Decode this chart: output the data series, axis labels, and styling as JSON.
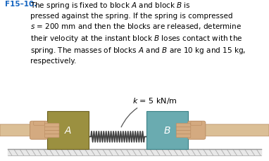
{
  "title_label": "F15–10.",
  "title_color": "#1565C0",
  "body_text": "The spring is fixed to block $A$ and block $B$ is\npressed against the spring. If the spring is compressed\n$s$ = 200 mm and then the blocks are released, determine\ntheir velocity at the instant block $B$ loses contact with the\nspring. The masses of blocks $A$ and $B$ are 10 kg and 15 kg,\nrespectively.",
  "spring_label": "$k$ = 5 kN/m",
  "block_A_color": "#9B9040",
  "block_B_color": "#6AABB0",
  "ground_top_color": "#D0D0D0",
  "ground_fill_color": "#E8E8E8",
  "hand_color": "#D4AA80",
  "hand_edge_color": "#B88A60",
  "arm_color": "#DBBF96",
  "background_color": "#FFFFFF",
  "label_A": "$A$",
  "label_B": "$B$",
  "text_fontsize": 7.5,
  "spring_label_fontsize": 8.0
}
